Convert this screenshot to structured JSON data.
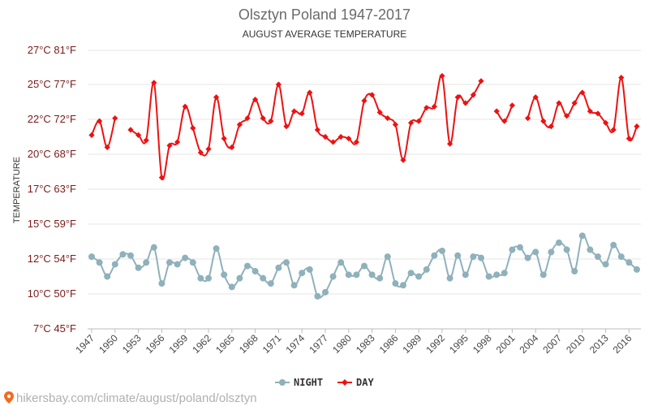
{
  "chart_data": {
    "type": "line",
    "title": "Olsztyn Poland 1947-2017",
    "subtitle": "AUGUST AVERAGE TEMPERATURE",
    "ylabel": "TEMPERATURE",
    "y_ticks": [
      {
        "c": 7,
        "label": "7°C 45°F"
      },
      {
        "c": 10,
        "label": "10°C 50°F"
      },
      {
        "c": 12,
        "label": "12°C 54°F"
      },
      {
        "c": 15,
        "label": "15°C 59°F"
      },
      {
        "c": 17,
        "label": "17°C 63°F"
      },
      {
        "c": 20,
        "label": "20°C 68°F"
      },
      {
        "c": 22,
        "label": "22°C 72°F"
      },
      {
        "c": 25,
        "label": "25°C 77°F"
      },
      {
        "c": 27,
        "label": "27°C 81°F"
      }
    ],
    "ylim": [
      7,
      27
    ],
    "x_start": 1947,
    "x_end": 2017,
    "x_tick_labels": [
      "1947",
      "1950",
      "1953",
      "1956",
      "1959",
      "1962",
      "1965",
      "1968",
      "1971",
      "1974",
      "1977",
      "1980",
      "1983",
      "1986",
      "1989",
      "1992",
      "1995",
      "1998",
      "2001",
      "2004",
      "2007",
      "2010",
      "2013",
      "2016"
    ],
    "grid": true,
    "legend_position": "bottom-center",
    "series": [
      {
        "name": "NIGHT",
        "color": "#8fb1bb",
        "values": [
          12.2,
          11.8,
          11.0,
          11.7,
          12.4,
          12.3,
          11.5,
          11.8,
          13.0,
          10.6,
          11.8,
          11.7,
          12.1,
          11.8,
          10.9,
          10.9,
          12.9,
          11.1,
          10.4,
          10.9,
          11.6,
          11.3,
          10.9,
          10.6,
          11.5,
          11.8,
          10.5,
          11.2,
          11.4,
          9.8,
          10.1,
          11.0,
          11.8,
          11.1,
          11.1,
          11.6,
          11.1,
          10.9,
          12.2,
          10.6,
          10.5,
          11.2,
          11.0,
          11.4,
          12.3,
          12.7,
          10.9,
          12.3,
          11.1,
          12.2,
          12.1,
          11.0,
          11.1,
          11.2,
          12.8,
          13.0,
          12.1,
          12.6,
          11.1,
          12.6,
          13.4,
          12.8,
          11.3,
          14.0,
          12.8,
          12.2,
          11.7,
          13.2,
          12.2,
          11.8,
          11.4
        ],
        "marker": "circle"
      },
      {
        "name": "DAY",
        "color": "#ee1111",
        "values": [
          21.1,
          21.9,
          20.4,
          22.1,
          null,
          21.4,
          21.1,
          20.8,
          25.1,
          18.0,
          20.5,
          20.7,
          23.1,
          21.5,
          20.1,
          20.3,
          23.9,
          20.9,
          20.4,
          21.7,
          22.1,
          23.7,
          22.1,
          21.9,
          25.0,
          21.6,
          22.7,
          22.5,
          24.3,
          21.4,
          21.0,
          20.7,
          21.0,
          20.9,
          20.7,
          23.6,
          24.1,
          22.6,
          22.1,
          21.7,
          19.5,
          21.8,
          21.9,
          23.0,
          23.1,
          25.5,
          20.6,
          23.9,
          23.4,
          24.1,
          25.2,
          null,
          22.7,
          21.9,
          23.2,
          null,
          22.1,
          23.9,
          21.9,
          21.6,
          23.4,
          22.3,
          23.4,
          24.3,
          22.7,
          22.5,
          21.8,
          21.4,
          25.4,
          20.9,
          21.6
        ],
        "marker": "diamond"
      }
    ]
  },
  "legend": {
    "night_label": "NIGHT",
    "day_label": "DAY"
  },
  "source_text": "hikersbay.com/climate/august/poland/olsztyn"
}
